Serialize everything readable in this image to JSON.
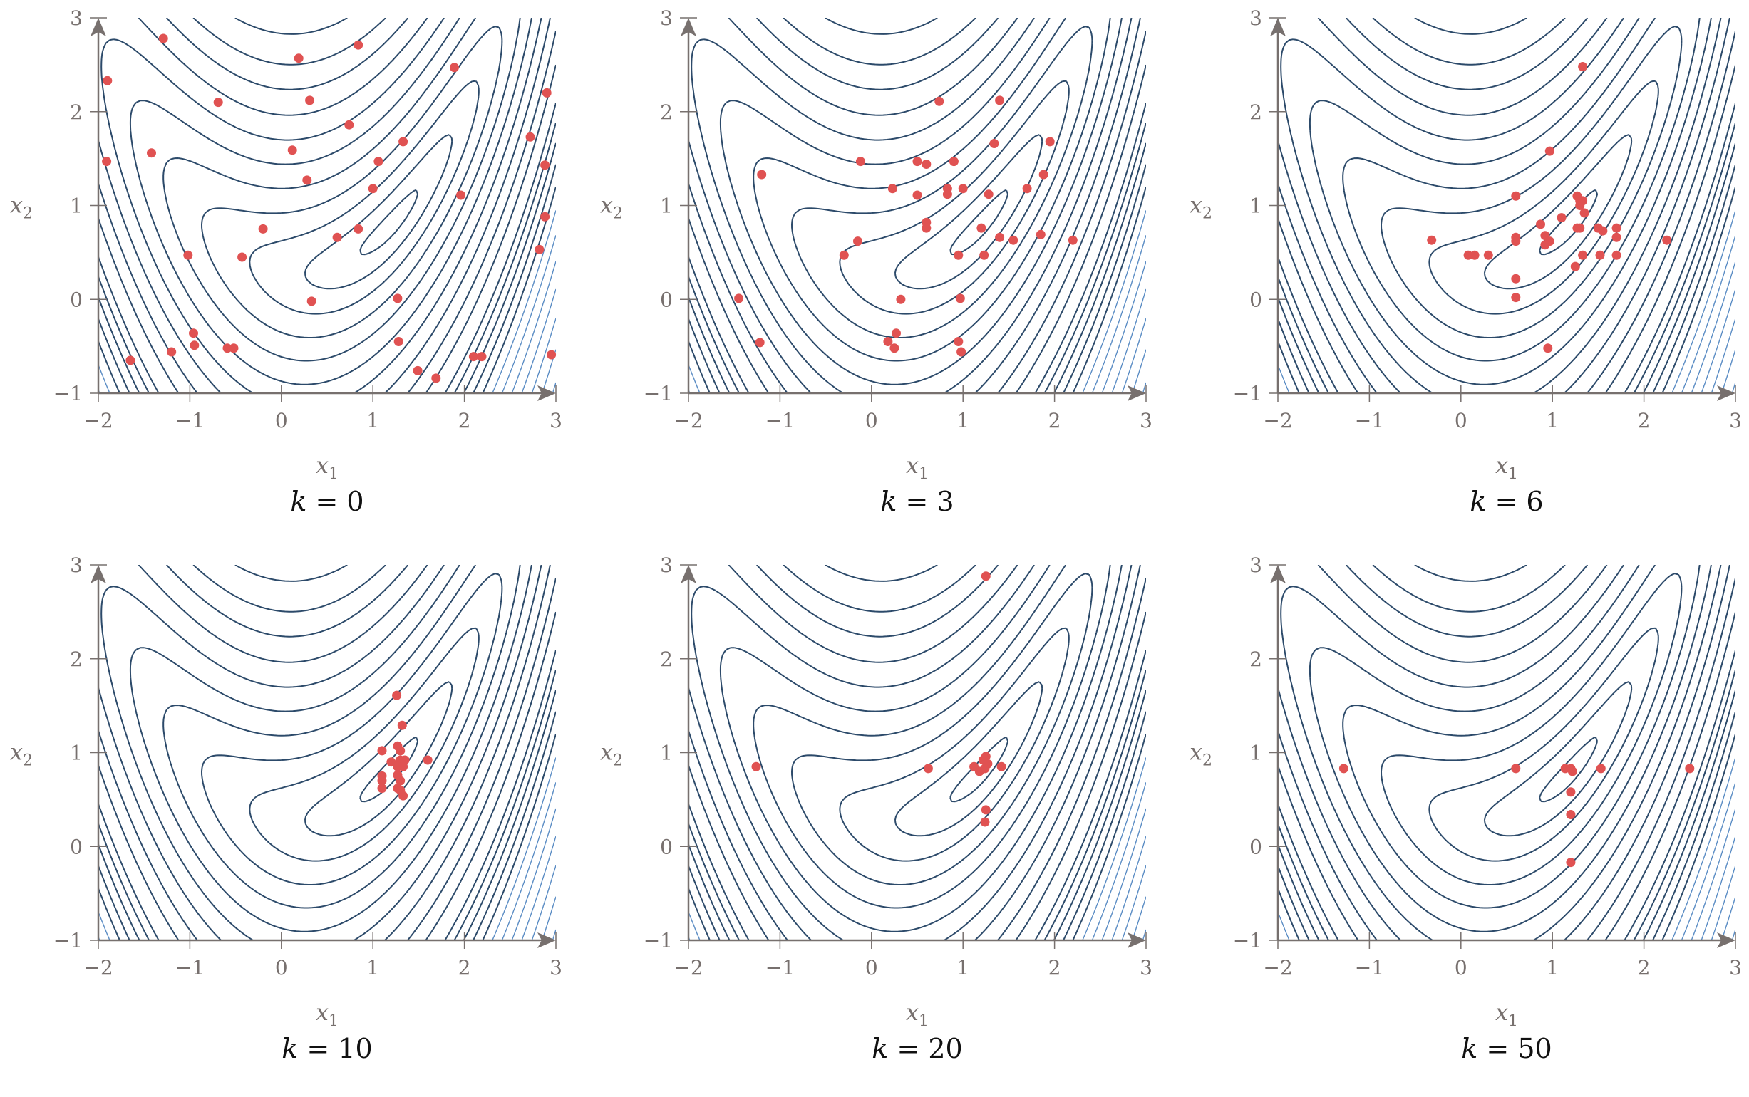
{
  "figure": {
    "xlabel": "x1",
    "ylabel": "x2",
    "xticks": [
      -2,
      -1,
      0,
      1,
      2,
      3
    ],
    "yticks": [
      -1,
      0,
      1,
      2,
      3
    ],
    "xlim": [
      -2,
      3
    ],
    "ylim": [
      -1,
      3
    ],
    "colors": {
      "points": "#e05252",
      "contour_dark": "#2c4a6a",
      "contour_light": "#5a8cc4",
      "axis": "#77706e",
      "tick_text": "#77706e",
      "caption_text": "#111111"
    }
  },
  "panels": [
    {
      "label": "k = 0",
      "k": 0
    },
    {
      "label": "k = 3",
      "k": 3
    },
    {
      "label": "k = 6",
      "k": 6
    },
    {
      "label": "k = 10",
      "k": 10
    },
    {
      "label": "k = 20",
      "k": 20
    },
    {
      "label": "k = 50",
      "k": 50
    }
  ],
  "chart_data": {
    "type": "scatter",
    "title": "",
    "xlabel": "x1",
    "ylabel": "x2",
    "xlim": [
      -2,
      3
    ],
    "ylim": [
      -1,
      3
    ],
    "grid": false,
    "legend": null,
    "background": "contour plot of objective function with minimum near (1.2, 0.8)",
    "layout": "2 rows x 3 columns of subplots",
    "series": [
      {
        "name": "k = 0",
        "points": [
          [
            -1.9,
            2.33
          ],
          [
            -1.29,
            2.78
          ],
          [
            0.19,
            2.57
          ],
          [
            0.84,
            2.71
          ],
          [
            1.89,
            2.47
          ],
          [
            -0.69,
            2.1
          ],
          [
            0.31,
            2.12
          ],
          [
            2.9,
            2.2
          ],
          [
            0.74,
            1.86
          ],
          [
            -1.42,
            1.56
          ],
          [
            -1.91,
            1.47
          ],
          [
            0.12,
            1.59
          ],
          [
            1.06,
            1.47
          ],
          [
            1.33,
            1.68
          ],
          [
            2.72,
            1.73
          ],
          [
            2.88,
            1.43
          ],
          [
            0.28,
            1.27
          ],
          [
            1.0,
            1.18
          ],
          [
            1.96,
            1.11
          ],
          [
            2.88,
            0.88
          ],
          [
            -0.2,
            0.75
          ],
          [
            0.84,
            0.75
          ],
          [
            0.61,
            0.66
          ],
          [
            2.82,
            0.53
          ],
          [
            -1.02,
            0.47
          ],
          [
            -0.43,
            0.45
          ],
          [
            0.33,
            -0.02
          ],
          [
            1.27,
            0.01
          ],
          [
            -0.96,
            -0.36
          ],
          [
            -0.95,
            -0.49
          ],
          [
            -0.59,
            -0.52
          ],
          [
            -0.52,
            -0.52
          ],
          [
            -1.2,
            -0.56
          ],
          [
            -1.65,
            -0.65
          ],
          [
            1.28,
            -0.45
          ],
          [
            1.49,
            -0.76
          ],
          [
            1.69,
            -0.84
          ],
          [
            2.1,
            -0.61
          ],
          [
            2.19,
            -0.61
          ],
          [
            2.95,
            -0.59
          ]
        ]
      },
      {
        "name": "k = 3",
        "points": [
          [
            0.74,
            2.11
          ],
          [
            1.4,
            2.12
          ],
          [
            1.34,
            1.66
          ],
          [
            1.95,
            1.68
          ],
          [
            -1.2,
            1.33
          ],
          [
            -0.12,
            1.47
          ],
          [
            0.5,
            1.47
          ],
          [
            0.6,
            1.44
          ],
          [
            0.9,
            1.47
          ],
          [
            1.88,
            1.33
          ],
          [
            0.23,
            1.18
          ],
          [
            0.83,
            1.18
          ],
          [
            0.83,
            1.12
          ],
          [
            1.0,
            1.18
          ],
          [
            1.28,
            1.12
          ],
          [
            1.7,
            1.18
          ],
          [
            0.5,
            1.11
          ],
          [
            0.6,
            0.82
          ],
          [
            0.6,
            0.76
          ],
          [
            1.2,
            0.76
          ],
          [
            1.4,
            0.66
          ],
          [
            1.55,
            0.63
          ],
          [
            1.85,
            0.69
          ],
          [
            2.2,
            0.63
          ],
          [
            -0.15,
            0.62
          ],
          [
            -0.3,
            0.47
          ],
          [
            0.95,
            0.47
          ],
          [
            1.23,
            0.47
          ],
          [
            -1.45,
            0.01
          ],
          [
            0.32,
            0.0
          ],
          [
            0.97,
            0.01
          ],
          [
            0.27,
            -0.36
          ],
          [
            0.18,
            -0.45
          ],
          [
            0.25,
            -0.52
          ],
          [
            0.95,
            -0.45
          ],
          [
            0.98,
            -0.56
          ],
          [
            -1.22,
            -0.46
          ]
        ]
      },
      {
        "name": "k = 6",
        "points": [
          [
            1.33,
            2.48
          ],
          [
            0.97,
            1.58
          ],
          [
            0.6,
            1.1
          ],
          [
            1.27,
            1.1
          ],
          [
            1.3,
            1.05
          ],
          [
            1.33,
            1.05
          ],
          [
            1.3,
            1.0
          ],
          [
            1.1,
            0.87
          ],
          [
            1.35,
            0.92
          ],
          [
            0.87,
            0.8
          ],
          [
            1.27,
            0.76
          ],
          [
            1.3,
            0.76
          ],
          [
            1.5,
            0.76
          ],
          [
            1.55,
            0.73
          ],
          [
            1.7,
            0.76
          ],
          [
            1.7,
            0.66
          ],
          [
            0.6,
            0.66
          ],
          [
            0.6,
            0.62
          ],
          [
            0.92,
            0.68
          ],
          [
            0.97,
            0.62
          ],
          [
            0.92,
            0.58
          ],
          [
            -0.32,
            0.63
          ],
          [
            2.25,
            0.63
          ],
          [
            0.08,
            0.47
          ],
          [
            0.15,
            0.47
          ],
          [
            0.3,
            0.47
          ],
          [
            1.33,
            0.47
          ],
          [
            1.52,
            0.47
          ],
          [
            1.7,
            0.47
          ],
          [
            1.25,
            0.35
          ],
          [
            0.6,
            0.22
          ],
          [
            0.6,
            0.02
          ],
          [
            0.95,
            -0.52
          ]
        ]
      },
      {
        "name": "k = 10",
        "points": [
          [
            1.26,
            1.61
          ],
          [
            1.32,
            1.29
          ],
          [
            1.1,
            1.02
          ],
          [
            1.27,
            1.07
          ],
          [
            1.3,
            1.02
          ],
          [
            1.6,
            0.92
          ],
          [
            1.2,
            0.9
          ],
          [
            1.3,
            0.92
          ],
          [
            1.35,
            0.92
          ],
          [
            1.27,
            0.85
          ],
          [
            1.33,
            0.85
          ],
          [
            1.1,
            0.75
          ],
          [
            1.1,
            0.7
          ],
          [
            1.27,
            0.76
          ],
          [
            1.3,
            0.7
          ],
          [
            1.1,
            0.62
          ],
          [
            1.27,
            0.62
          ],
          [
            1.3,
            0.6
          ],
          [
            1.33,
            0.54
          ]
        ]
      },
      {
        "name": "k = 20",
        "points": [
          [
            1.25,
            2.88
          ],
          [
            -1.26,
            0.85
          ],
          [
            0.62,
            0.83
          ],
          [
            1.12,
            0.85
          ],
          [
            1.18,
            0.8
          ],
          [
            1.22,
            0.92
          ],
          [
            1.25,
            0.96
          ],
          [
            1.27,
            0.88
          ],
          [
            1.24,
            0.83
          ],
          [
            1.42,
            0.85
          ],
          [
            1.25,
            0.39
          ],
          [
            1.24,
            0.26
          ]
        ]
      },
      {
        "name": "k = 50",
        "points": [
          [
            -1.28,
            0.83
          ],
          [
            0.6,
            0.83
          ],
          [
            1.14,
            0.83
          ],
          [
            1.2,
            0.83
          ],
          [
            1.22,
            0.8
          ],
          [
            1.2,
            0.58
          ],
          [
            1.2,
            0.34
          ],
          [
            1.2,
            -0.17
          ],
          [
            1.53,
            0.83
          ],
          [
            2.5,
            0.83
          ]
        ]
      }
    ]
  }
}
